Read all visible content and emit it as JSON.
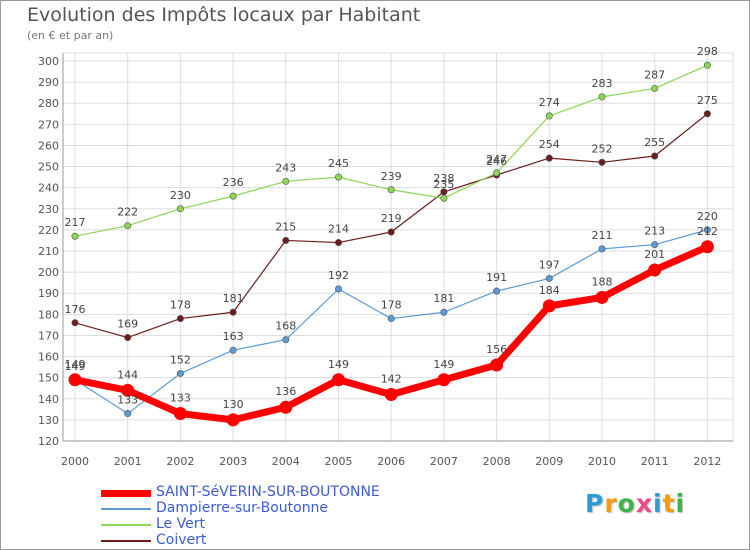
{
  "title": "Evolution des Impôts locaux par Habitant",
  "subtitle": "(en € et par an)",
  "logo": {
    "letters": [
      "P",
      "r",
      "o",
      "x",
      "i",
      "t",
      "i"
    ],
    "colors": [
      "#2e9bd6",
      "#f39c12",
      "#3db54a",
      "#e84c8b",
      "#2e9bd6",
      "#f39c12",
      "#3db54a"
    ]
  },
  "chart_data": {
    "type": "line",
    "title": "Evolution des Impôts locaux par Habitant",
    "subtitle": "(en € et par an)",
    "xlabel": "",
    "ylabel": "",
    "ylim": [
      120,
      300
    ],
    "ytick_step": 10,
    "grid": true,
    "legend_placement": "bottom-left",
    "x": [
      "2000",
      "2001",
      "2002",
      "2003",
      "2004",
      "2005",
      "2006",
      "2007",
      "2008",
      "2009",
      "2010",
      "2011",
      "2012"
    ],
    "series": [
      {
        "name": "SAINT-SéVERIN-SUR-BOUTONNE",
        "color": "#ff0000",
        "values": [
          149,
          144,
          133,
          130,
          136,
          149,
          142,
          149,
          156,
          184,
          188,
          201,
          212
        ],
        "labels": [
          "149",
          "144",
          "133",
          "130",
          "136",
          "149",
          "142",
          "149",
          "156",
          "184",
          "188",
          "201",
          "212"
        ]
      },
      {
        "name": "Dampierre-sur-Boutonne",
        "color": "#5b9bd5",
        "values": [
          149,
          133,
          152,
          163,
          168,
          192,
          178,
          181,
          191,
          197,
          211,
          213,
          220
        ],
        "labels": [
          "149",
          "133",
          "152",
          "163",
          "168",
          "192",
          "178",
          "181",
          "191",
          "197",
          "211",
          "213",
          "220"
        ]
      },
      {
        "name": "Le Vert",
        "color": "#8ed655",
        "values": [
          217,
          222,
          230,
          236,
          243,
          245,
          239,
          235,
          247,
          274,
          283,
          287,
          298
        ],
        "labels": [
          "217",
          "222",
          "230",
          "236",
          "243",
          "245",
          "239",
          "235",
          "247",
          "274",
          "283",
          "287",
          "298"
        ]
      },
      {
        "name": "Coivert",
        "color": "#6b1c1c",
        "values": [
          176,
          169,
          178,
          181,
          215,
          214,
          219,
          238,
          246,
          254,
          252,
          255,
          275
        ],
        "labels": [
          "176",
          "169",
          "178",
          "181",
          "215",
          "214",
          "219",
          "238",
          "246",
          "254",
          "252",
          "255",
          "275"
        ]
      }
    ]
  }
}
